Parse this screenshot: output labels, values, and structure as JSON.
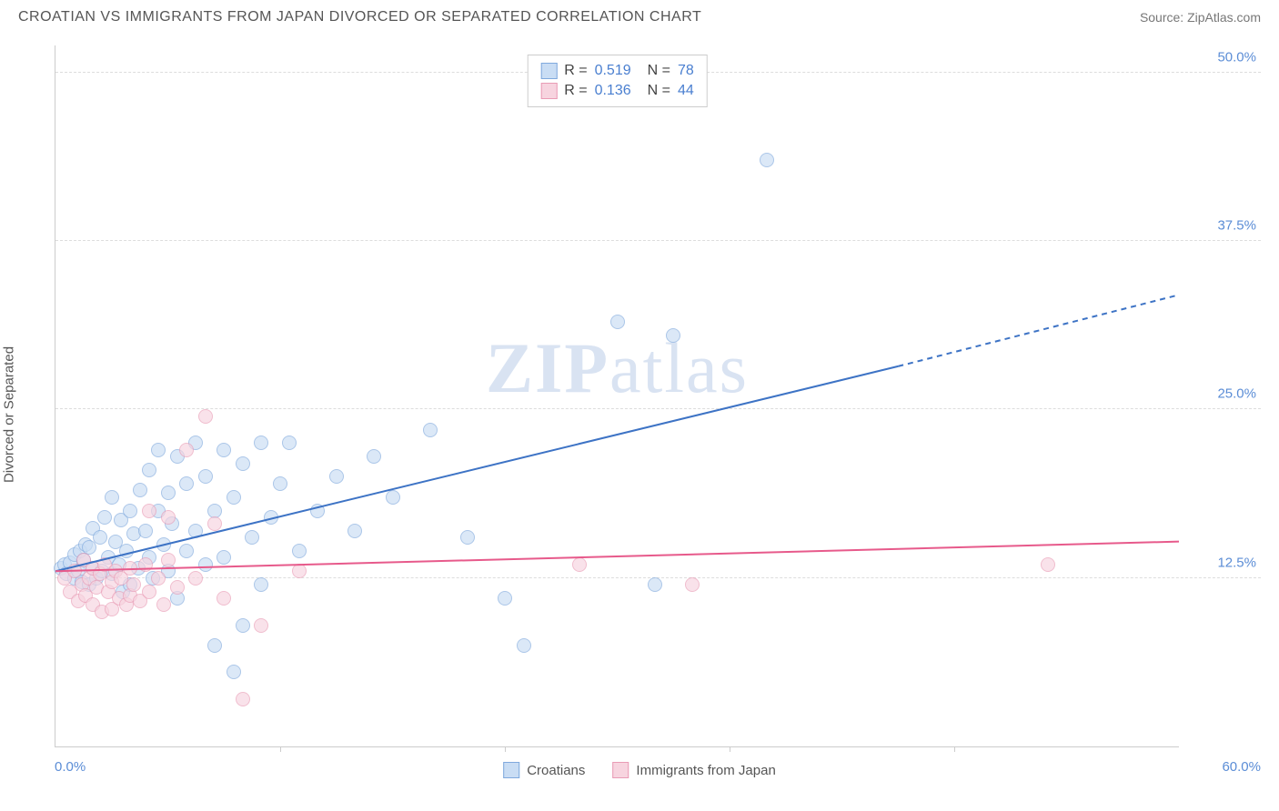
{
  "title": "CROATIAN VS IMMIGRANTS FROM JAPAN DIVORCED OR SEPARATED CORRELATION CHART",
  "source_label": "Source:",
  "source_name": "ZipAtlas.com",
  "ylabel": "Divorced or Separated",
  "watermark_a": "ZIP",
  "watermark_b": "atlas",
  "chart": {
    "type": "scatter",
    "xlim": [
      0,
      60
    ],
    "ylim": [
      0,
      52
    ],
    "xmin_label": "0.0%",
    "xmax_label": "60.0%",
    "yticks": [
      {
        "v": 12.5,
        "label": "12.5%"
      },
      {
        "v": 25.0,
        "label": "25.0%"
      },
      {
        "v": 37.5,
        "label": "37.5%"
      },
      {
        "v": 50.0,
        "label": "50.0%"
      }
    ],
    "xticks": [
      12,
      24,
      36,
      48
    ],
    "background_color": "#ffffff",
    "grid_color": "#dddddd",
    "series": [
      {
        "name": "Croatians",
        "fill": "#c9ddf4",
        "stroke": "#7fa9dd",
        "line_color": "#3d73c5",
        "opacity": 0.65,
        "marker_radius": 8,
        "R": "0.519",
        "N": "78",
        "trend": {
          "x1": 0,
          "y1": 13.0,
          "x2": 45,
          "y2": 28.2,
          "dash_to_x": 60,
          "dash_to_y": 33.5
        },
        "points": [
          [
            0.3,
            13.2
          ],
          [
            0.5,
            13.5
          ],
          [
            0.6,
            12.8
          ],
          [
            0.8,
            13.6
          ],
          [
            1.0,
            12.5
          ],
          [
            1.0,
            14.2
          ],
          [
            1.2,
            13.0
          ],
          [
            1.3,
            14.5
          ],
          [
            1.4,
            12.2
          ],
          [
            1.5,
            13.8
          ],
          [
            1.6,
            15.0
          ],
          [
            1.8,
            12.0
          ],
          [
            1.8,
            14.8
          ],
          [
            2.0,
            13.2
          ],
          [
            2.0,
            16.2
          ],
          [
            2.2,
            12.5
          ],
          [
            2.4,
            15.5
          ],
          [
            2.5,
            13.0
          ],
          [
            2.6,
            17.0
          ],
          [
            2.8,
            14.0
          ],
          [
            3.0,
            12.8
          ],
          [
            3.0,
            18.5
          ],
          [
            3.2,
            15.2
          ],
          [
            3.4,
            13.5
          ],
          [
            3.5,
            16.8
          ],
          [
            3.6,
            11.5
          ],
          [
            3.8,
            14.5
          ],
          [
            4.0,
            17.5
          ],
          [
            4.0,
            12.0
          ],
          [
            4.2,
            15.8
          ],
          [
            4.4,
            13.2
          ],
          [
            4.5,
            19.0
          ],
          [
            4.8,
            16.0
          ],
          [
            5.0,
            14.0
          ],
          [
            5.0,
            20.5
          ],
          [
            5.2,
            12.5
          ],
          [
            5.5,
            17.5
          ],
          [
            5.5,
            22.0
          ],
          [
            5.8,
            15.0
          ],
          [
            6.0,
            13.0
          ],
          [
            6.0,
            18.8
          ],
          [
            6.2,
            16.5
          ],
          [
            6.5,
            21.5
          ],
          [
            6.5,
            11.0
          ],
          [
            7.0,
            19.5
          ],
          [
            7.0,
            14.5
          ],
          [
            7.5,
            22.5
          ],
          [
            7.5,
            16.0
          ],
          [
            8.0,
            13.5
          ],
          [
            8.0,
            20.0
          ],
          [
            8.5,
            17.5
          ],
          [
            8.5,
            7.5
          ],
          [
            9.0,
            22.0
          ],
          [
            9.0,
            14.0
          ],
          [
            9.5,
            18.5
          ],
          [
            9.5,
            5.5
          ],
          [
            10.0,
            21.0
          ],
          [
            10.0,
            9.0
          ],
          [
            10.5,
            15.5
          ],
          [
            11.0,
            22.5
          ],
          [
            11.0,
            12.0
          ],
          [
            11.5,
            17.0
          ],
          [
            12.0,
            19.5
          ],
          [
            12.5,
            22.5
          ],
          [
            13.0,
            14.5
          ],
          [
            14.0,
            17.5
          ],
          [
            15.0,
            20.0
          ],
          [
            16.0,
            16.0
          ],
          [
            17.0,
            21.5
          ],
          [
            18.0,
            18.5
          ],
          [
            20.0,
            23.5
          ],
          [
            22.0,
            15.5
          ],
          [
            24.0,
            11.0
          ],
          [
            25.0,
            7.5
          ],
          [
            30.0,
            31.5
          ],
          [
            32.0,
            12.0
          ],
          [
            33.0,
            30.5
          ],
          [
            38.0,
            43.5
          ]
        ]
      },
      {
        "name": "Immigrants from Japan",
        "fill": "#f7d4df",
        "stroke": "#e99bb5",
        "line_color": "#e75a8b",
        "opacity": 0.65,
        "marker_radius": 8,
        "R": "0.136",
        "N": "44",
        "trend": {
          "x1": 0,
          "y1": 13.0,
          "x2": 60,
          "y2": 15.2
        },
        "points": [
          [
            0.5,
            12.5
          ],
          [
            0.8,
            11.5
          ],
          [
            1.0,
            13.0
          ],
          [
            1.2,
            10.8
          ],
          [
            1.4,
            12.0
          ],
          [
            1.5,
            13.8
          ],
          [
            1.6,
            11.2
          ],
          [
            1.8,
            12.5
          ],
          [
            2.0,
            10.5
          ],
          [
            2.0,
            13.2
          ],
          [
            2.2,
            11.8
          ],
          [
            2.4,
            12.8
          ],
          [
            2.5,
            10.0
          ],
          [
            2.6,
            13.5
          ],
          [
            2.8,
            11.5
          ],
          [
            3.0,
            12.2
          ],
          [
            3.0,
            10.2
          ],
          [
            3.2,
            13.0
          ],
          [
            3.4,
            11.0
          ],
          [
            3.5,
            12.5
          ],
          [
            3.8,
            10.5
          ],
          [
            4.0,
            13.2
          ],
          [
            4.0,
            11.2
          ],
          [
            4.2,
            12.0
          ],
          [
            4.5,
            10.8
          ],
          [
            4.8,
            13.5
          ],
          [
            5.0,
            11.5
          ],
          [
            5.0,
            17.5
          ],
          [
            5.5,
            12.5
          ],
          [
            5.8,
            10.5
          ],
          [
            6.0,
            13.8
          ],
          [
            6.0,
            17.0
          ],
          [
            6.5,
            11.8
          ],
          [
            7.0,
            22.0
          ],
          [
            7.5,
            12.5
          ],
          [
            8.0,
            24.5
          ],
          [
            8.5,
            16.5
          ],
          [
            9.0,
            11.0
          ],
          [
            10.0,
            3.5
          ],
          [
            11.0,
            9.0
          ],
          [
            13.0,
            13.0
          ],
          [
            28.0,
            13.5
          ],
          [
            34.0,
            12.0
          ],
          [
            53.0,
            13.5
          ]
        ]
      }
    ]
  },
  "legend": {
    "r_label": "R =",
    "n_label": "N ="
  }
}
